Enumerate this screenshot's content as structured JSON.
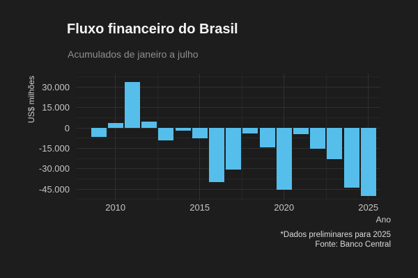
{
  "header": {
    "title": "Fluxo financeiro do Brasil",
    "subtitle": "Acumulados de janeiro a julho"
  },
  "axes": {
    "y_label": "US$ milhões",
    "x_label": "Ano"
  },
  "footer": {
    "note": "*Dados preliminares para 2025",
    "source": "Fonte: Banco Central"
  },
  "colors": {
    "background": "#1e1d1d",
    "panel": "#1c1c1c",
    "bar": "#56beeb",
    "grid_major": "#303030",
    "grid_minor": "#272727",
    "title_text": "#f4f4f4",
    "subtitle_text": "#8f8f8f",
    "tick_text": "#c6c6c6",
    "footer_text": "#dcdcdc"
  },
  "chart_data": {
    "type": "bar",
    "title": "Fluxo financeiro do Brasil",
    "subtitle": "Acumulados de janeiro a julho",
    "xlabel": "Ano",
    "ylabel": "US$ milhões",
    "unit": "US$ milhões",
    "x": [
      2009,
      2010,
      2011,
      2012,
      2013,
      2014,
      2015,
      2016,
      2017,
      2018,
      2019,
      2020,
      2021,
      2022,
      2023,
      2024,
      2025
    ],
    "values": [
      -6500,
      3900,
      34000,
      4600,
      -8900,
      -2000,
      -7700,
      -39900,
      -30700,
      -4100,
      -14300,
      -45500,
      -4600,
      -15200,
      -22900,
      -43600,
      -49800
    ],
    "bar_color": "#56beeb",
    "ylim": [
      -53500,
      40000
    ],
    "yticks": [
      30000,
      15000,
      0,
      -15000,
      -30000,
      -45000
    ],
    "ytick_labels": [
      "30.000",
      "15.000",
      "0",
      "-15.000",
      "-30.000",
      "-45.000"
    ],
    "xticks": [
      2010,
      2015,
      2020,
      2025
    ],
    "grid": "on",
    "legend": "none",
    "annotations": [
      "*Dados preliminares para 2025",
      "Fonte: Banco Central"
    ]
  }
}
